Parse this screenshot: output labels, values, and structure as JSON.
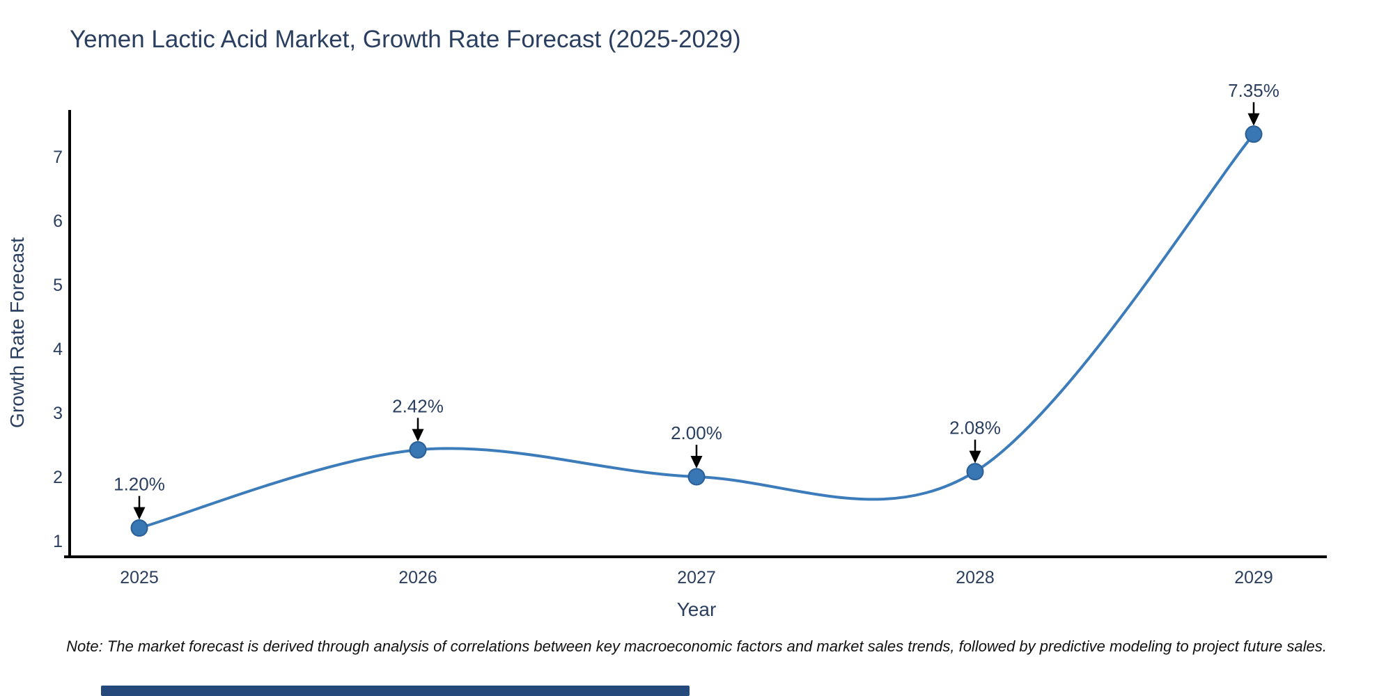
{
  "chart_data": {
    "type": "line",
    "title": "Yemen Lactic Acid Market, Growth Rate Forecast (2025-2029)",
    "xlabel": "Year",
    "ylabel": "Growth Rate Forecast",
    "x": [
      2025,
      2026,
      2027,
      2028,
      2029
    ],
    "x_tick_labels": [
      "2025",
      "2026",
      "2027",
      "2028",
      "2029"
    ],
    "series": [
      {
        "name": "Growth Rate Forecast",
        "values": [
          1.2,
          2.42,
          2.0,
          2.08,
          7.35
        ]
      }
    ],
    "point_labels": [
      "1.20%",
      "2.42%",
      "2.00%",
      "2.08%",
      "7.35%"
    ],
    "y_ticks": [
      1,
      2,
      3,
      4,
      5,
      6,
      7
    ],
    "ylim": [
      0.75,
      7.73
    ],
    "xlim": [
      2024.74,
      2029.26
    ],
    "line_shape": "spline",
    "grid": false,
    "legend": "none",
    "colors": {
      "line": "#3d7cba",
      "marker_fill": "#3876b4",
      "marker_edge": "#2b5f95",
      "axis_line": "#000000",
      "text": "#2a3f5f",
      "annotation_arrow": "#000000",
      "note_text": "#111111",
      "scrollbar": "#25497a",
      "background": "#ffffff"
    }
  },
  "note": "Note: The market forecast is derived through analysis of correlations between key macroeconomic factors and market sales trends, followed by predictive modeling to project future sales.",
  "scrollbar": {
    "present": true
  }
}
